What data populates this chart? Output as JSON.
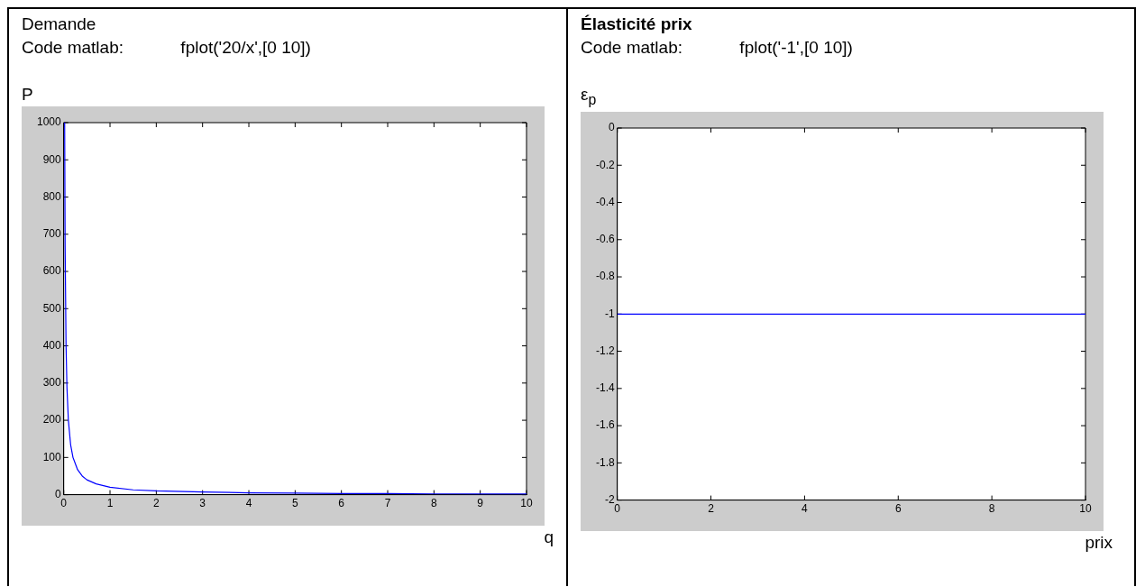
{
  "chart_data": [
    {
      "type": "line",
      "title": "Demande",
      "subtitle": "Code matlab:            fplot('20/x',[0 10])",
      "ylabel": "P",
      "xlabel": "q",
      "series": [
        {
          "color": "#0000ff",
          "x": [
            0.02,
            0.03,
            0.05,
            0.07,
            0.1,
            0.15,
            0.2,
            0.3,
            0.4,
            0.5,
            0.7,
            1,
            1.5,
            2,
            3,
            4,
            5,
            6,
            7,
            8,
            9,
            10
          ],
          "values": [
            1000,
            667,
            400,
            286,
            200,
            133,
            100,
            67,
            50,
            40,
            29,
            20,
            13,
            10,
            7,
            5,
            4,
            3,
            3,
            2,
            2,
            2
          ]
        }
      ],
      "xlim": [
        0,
        10
      ],
      "ylim": [
        0,
        1000
      ],
      "xticks": [
        0,
        1,
        2,
        3,
        4,
        5,
        6,
        7,
        8,
        9,
        10
      ],
      "yticks": [
        0,
        100,
        200,
        300,
        400,
        500,
        600,
        700,
        800,
        900,
        1000
      ]
    },
    {
      "type": "line",
      "title": "Élasticité  prix",
      "subtitle": "Code matlab:            fplot('-1',[0 10])",
      "ylabel": "ε$_{p}$",
      "xlabel": "prix",
      "series": [
        {
          "color": "#0000ff",
          "x": [
            0,
            10
          ],
          "values": [
            -1,
            -1
          ]
        }
      ],
      "xlim": [
        0,
        10
      ],
      "ylim": [
        -2,
        0
      ],
      "xticks": [
        0,
        2,
        4,
        6,
        8,
        10
      ],
      "yticks": [
        0,
        -0.2,
        -0.4,
        -0.6,
        -0.8,
        -1,
        -1.2,
        -1.4,
        -1.6,
        -1.8,
        -2
      ]
    }
  ]
}
